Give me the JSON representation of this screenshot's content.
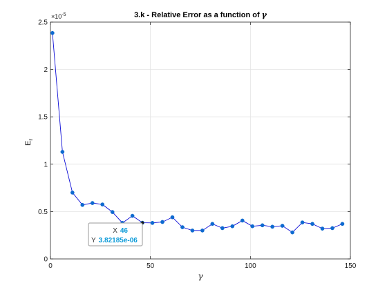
{
  "chart_data": {
    "type": "line",
    "title_prefix": "3.k - Relative Error as a function of ",
    "title_symbol": "γ",
    "xlabel": "γ",
    "ylabel_main": "E",
    "ylabel_sub": "r",
    "xlim": [
      0,
      150
    ],
    "ylim": [
      0,
      2.5
    ],
    "y_exponent_prefix": "×10",
    "y_exponent_power": "-5",
    "grid": true,
    "x_ticks": [
      0,
      50,
      100,
      150
    ],
    "x_tick_labels": [
      "0",
      "50",
      "100",
      "150"
    ],
    "y_ticks": [
      0,
      0.5,
      1,
      1.5,
      2,
      2.5
    ],
    "y_tick_labels": [
      "0",
      "0.5",
      "1",
      "1.5",
      "2",
      "2.5"
    ],
    "series": [
      {
        "color": "#0b0bd6",
        "marker_color": "#0e6ad0",
        "x": [
          1,
          6,
          11,
          16,
          21,
          26,
          31,
          36,
          41,
          46,
          51,
          56,
          61,
          66,
          71,
          76,
          81,
          86,
          91,
          96,
          101,
          106,
          111,
          116,
          121,
          126,
          131,
          136,
          141,
          146
        ],
        "y": [
          2.385,
          1.13,
          0.7,
          0.57,
          0.59,
          0.575,
          0.495,
          0.38,
          0.455,
          0.382185,
          0.38,
          0.39,
          0.44,
          0.335,
          0.3,
          0.3,
          0.37,
          0.325,
          0.345,
          0.405,
          0.345,
          0.355,
          0.34,
          0.35,
          0.28,
          0.385,
          0.37,
          0.32,
          0.325,
          0.37
        ]
      }
    ],
    "datatip": {
      "x_label": "X",
      "x_value": "46",
      "y_label": "Y",
      "y_value": "3.82185e-06",
      "x_data": 46,
      "y_data": 0.382185
    }
  }
}
